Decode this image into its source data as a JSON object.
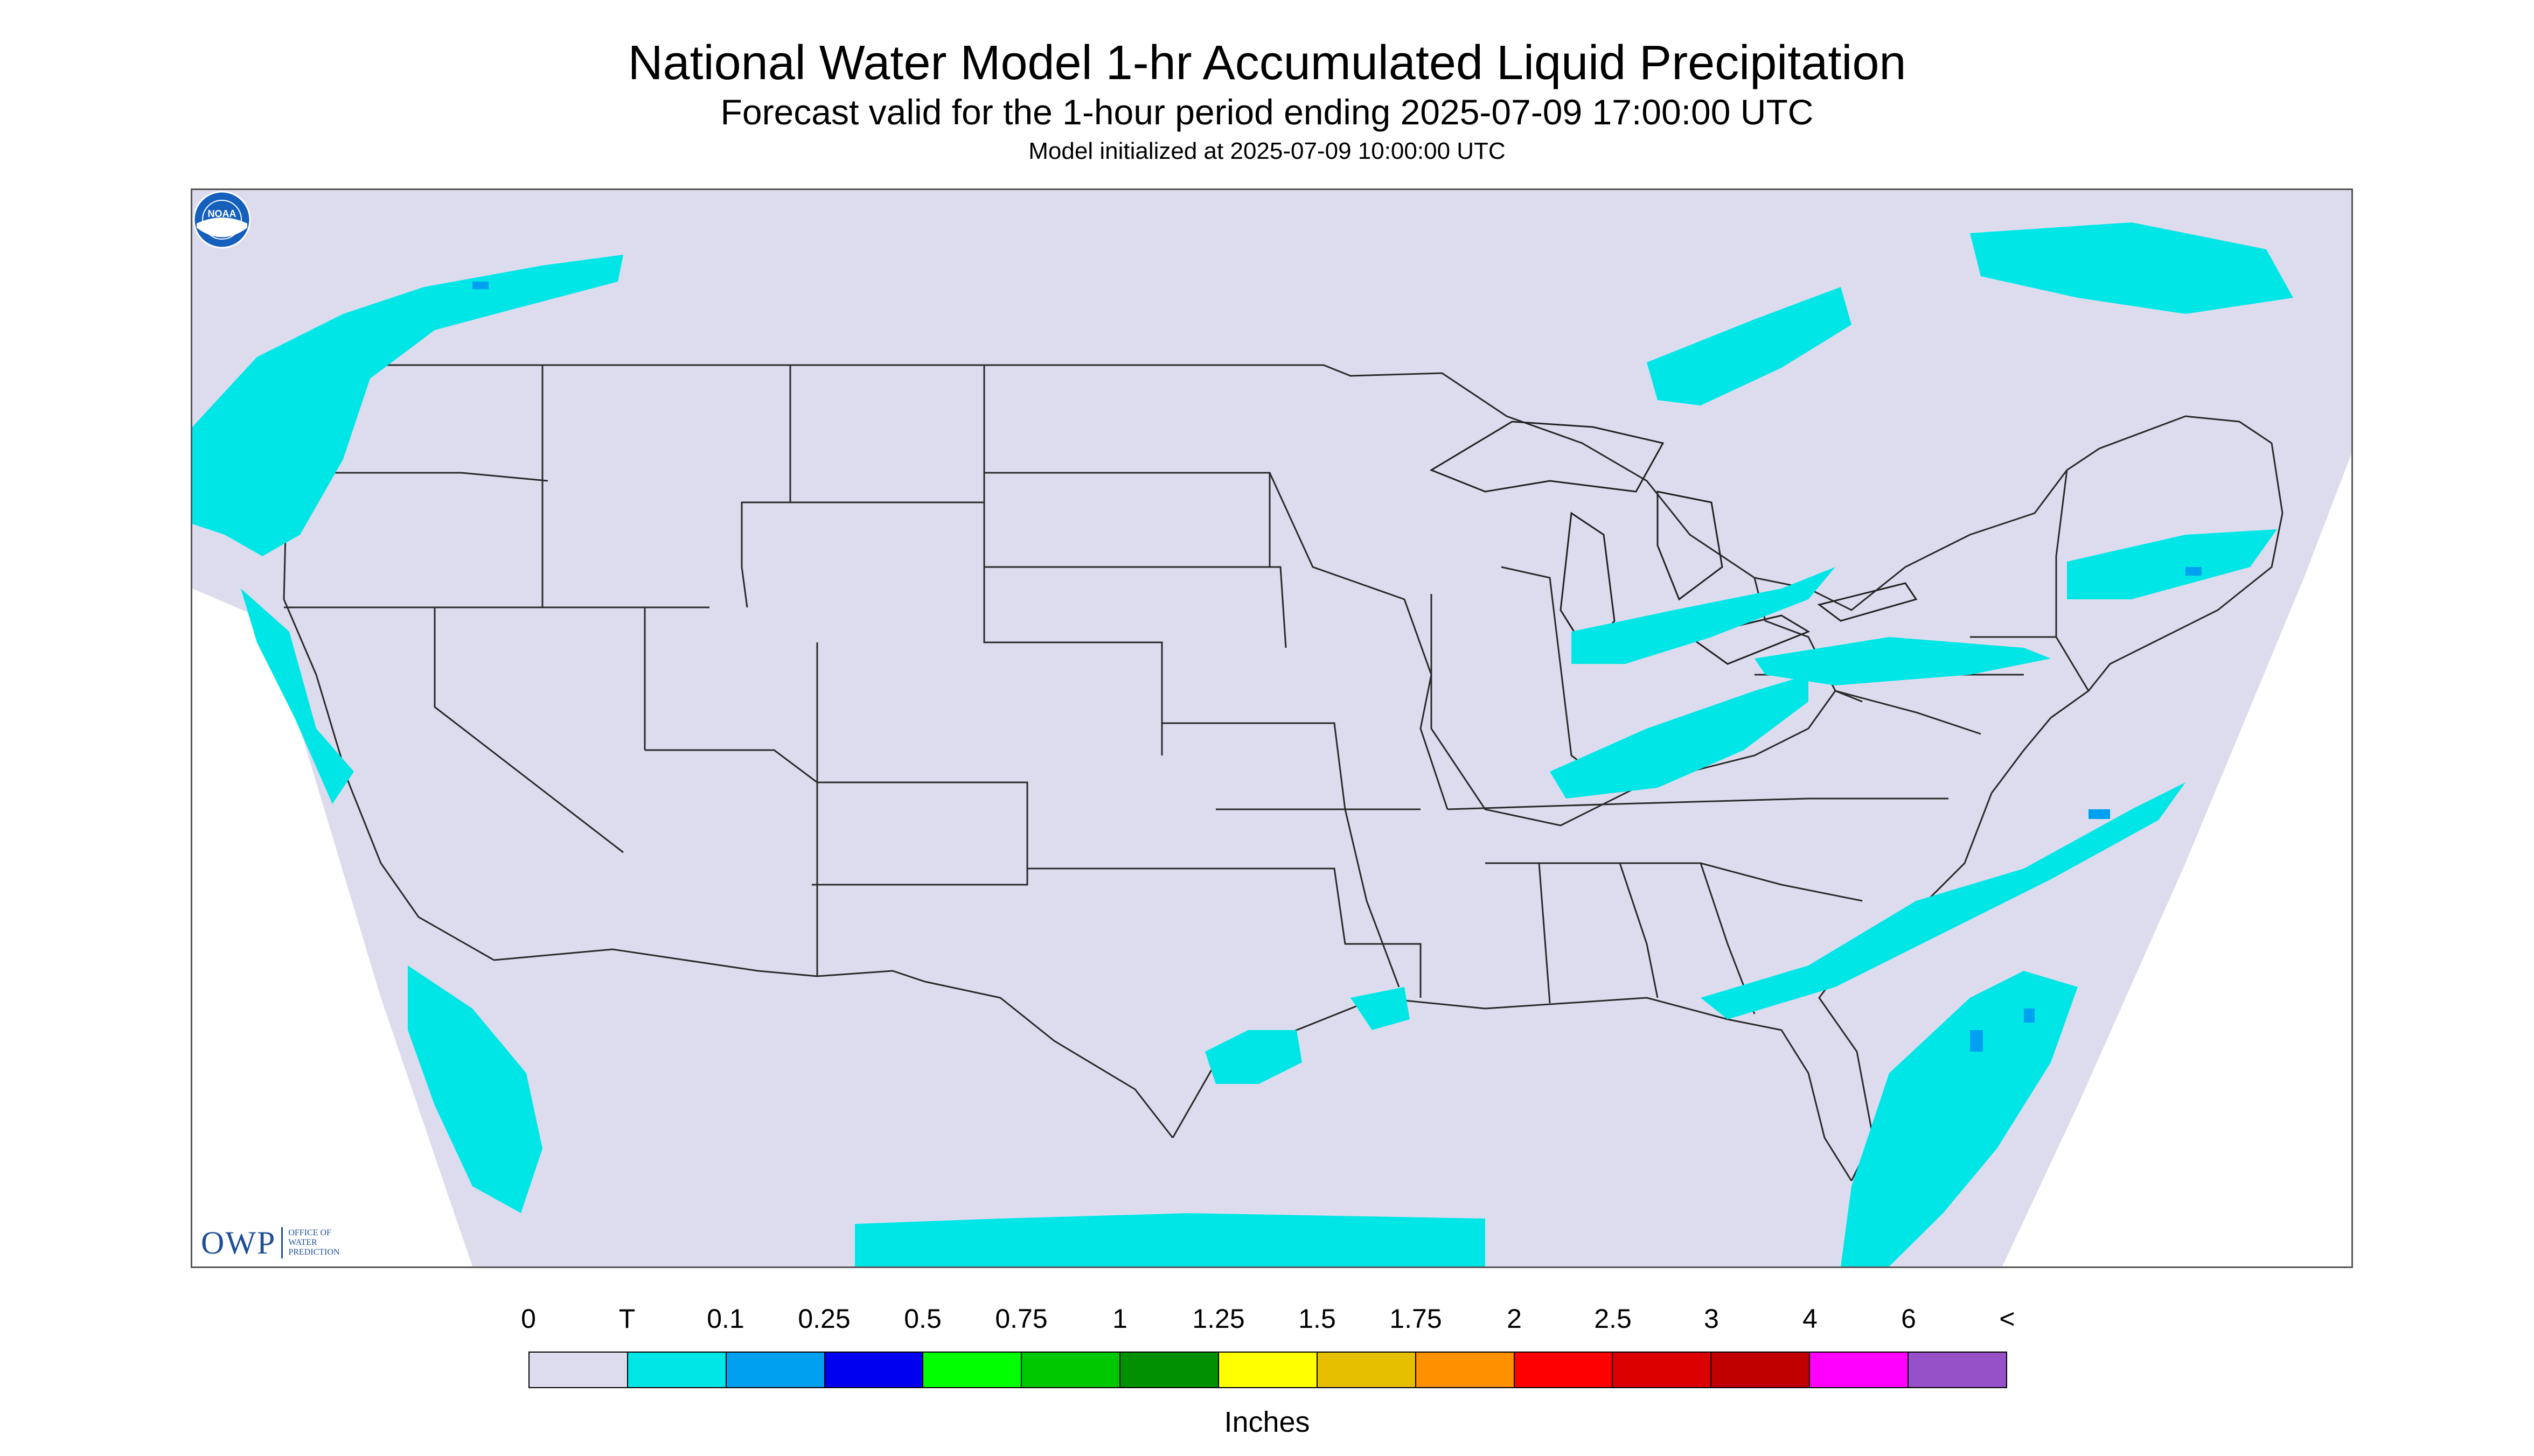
{
  "header": {
    "title": "National Water Model 1-hr Accumulated Liquid Precipitation",
    "subtitle": "Forecast valid for the 1-hour period ending 2025-07-09 17:00:00 UTC",
    "init": "Model initialized at 2025-07-09 10:00:00 UTC"
  },
  "logos": {
    "owp_letters": "OWP",
    "owp_line1": "OFFICE OF",
    "owp_line2": "WATER",
    "owp_line3": "PREDICTION",
    "noaa": "NOAA"
  },
  "legend": {
    "units": "Inches",
    "labels": [
      "0",
      "T",
      "0.1",
      "0.25",
      "0.5",
      "0.75",
      "1",
      "1.25",
      "1.5",
      "1.75",
      "2",
      "2.5",
      "3",
      "4",
      "6",
      "<"
    ],
    "colors": [
      "#dcdcee",
      "#00e6e6",
      "#00a0f0",
      "#0000f0",
      "#00ff00",
      "#00c800",
      "#009000",
      "#ffff00",
      "#e6c000",
      "#ff9000",
      "#ff0000",
      "#dc0000",
      "#c00000",
      "#ff00ff",
      "#9650c8"
    ]
  },
  "colors": {
    "map_background": "#dcdcee",
    "precip_trace": "#00e6e6",
    "precip_light": "#00a0f0",
    "boundaries": "#222222"
  }
}
